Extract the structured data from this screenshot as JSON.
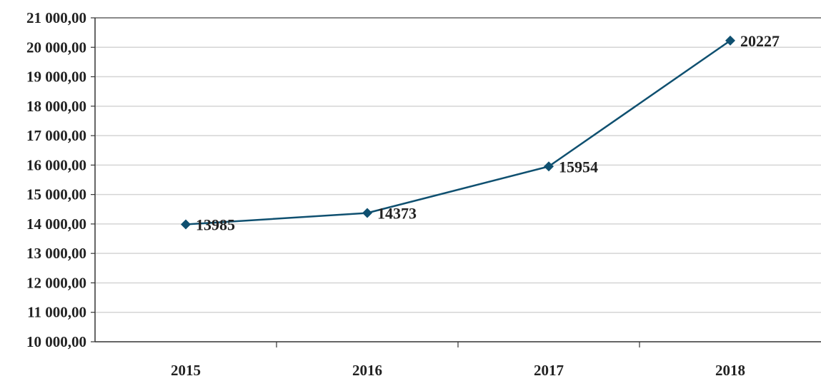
{
  "chart_data": {
    "type": "line",
    "categories": [
      "2015",
      "2016",
      "2017",
      "2018"
    ],
    "series": [
      {
        "values": [
          13985,
          14373,
          15954,
          20227
        ],
        "data_labels": [
          "13985",
          "14373",
          "15954",
          "20227"
        ],
        "color": "#0f5070",
        "marker": "diamond"
      }
    ],
    "title": "",
    "xlabel": "",
    "ylabel": "",
    "ylim": [
      10000,
      21000
    ],
    "ytick_values": [
      10000,
      11000,
      12000,
      13000,
      14000,
      15000,
      16000,
      17000,
      18000,
      19000,
      20000,
      21000
    ],
    "ytick_labels": [
      "10 000,00",
      "11 000,00",
      "12 000,00",
      "13 000,00",
      "14 000,00",
      "15 000,00",
      "16 000,00",
      "17 000,00",
      "18 000,00",
      "19 000,00",
      "20 000,00",
      "21 000,00"
    ],
    "grid": true,
    "legend": "none"
  },
  "colors": {
    "line": "#0f5070",
    "grid": "#d4d4d4",
    "axis": "#333333",
    "text": "#222222"
  }
}
